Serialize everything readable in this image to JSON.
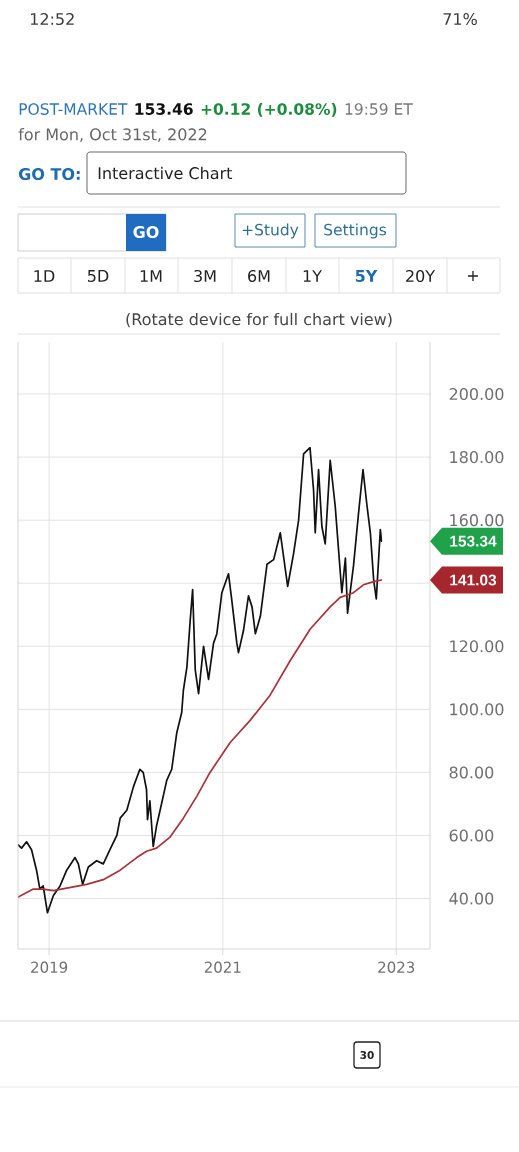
{
  "chart_data": {
    "type": "line",
    "series": [
      {
        "color": "#111111",
        "x": [
          "2018-08-24",
          "2018-09-07",
          "2018-09-28",
          "2018-10-19",
          "2018-11-09",
          "2018-11-23",
          "2018-12-07",
          "2018-12-25",
          "2019-01-19",
          "2019-02-16",
          "2019-03-16",
          "2019-04-20",
          "2019-05-04",
          "2019-05-22",
          "2019-06-15",
          "2019-07-20",
          "2019-08-17",
          "2019-09-14",
          "2019-10-13",
          "2019-10-27",
          "2019-11-24",
          "2019-12-22",
          "2020-01-18",
          "2020-02-01",
          "2020-02-15",
          "2020-02-19",
          "2020-02-29",
          "2020-03-14",
          "2020-03-28",
          "2020-04-18",
          "2020-05-10",
          "2020-05-31",
          "2020-06-21",
          "2020-07-12",
          "2020-07-19",
          "2020-08-03",
          "2020-08-17",
          "2020-08-27",
          "2020-09-07",
          "2020-09-21",
          "2020-10-12",
          "2020-11-02",
          "2020-11-23",
          "2020-12-07",
          "2020-12-28",
          "2021-01-25",
          "2021-02-08",
          "2021-03-01",
          "2021-03-08",
          "2021-03-29",
          "2021-04-19",
          "2021-05-04",
          "2021-05-18",
          "2021-06-08",
          "2021-07-06",
          "2021-08-03",
          "2021-08-31",
          "2021-10-01",
          "2021-10-26",
          "2021-11-16",
          "2021-12-07",
          "2022-01-03",
          "2022-01-18",
          "2022-01-25",
          "2022-02-08",
          "2022-02-22",
          "2022-03-08",
          "2022-03-29",
          "2022-04-19",
          "2022-05-17",
          "2022-06-01",
          "2022-06-10",
          "2022-07-05",
          "2022-07-26",
          "2022-08-14",
          "2022-08-31",
          "2022-09-14",
          "2022-09-28",
          "2022-10-09",
          "2022-10-26",
          "2022-10-31"
        ],
        "values": [
          57,
          56,
          58,
          55.5,
          49,
          43,
          44,
          35.5,
          41,
          44,
          49,
          53,
          51,
          44.5,
          50,
          52,
          51,
          55.5,
          60,
          65.5,
          68,
          75.5,
          81,
          80,
          74.5,
          65,
          71,
          56.5,
          63,
          70,
          77.5,
          81,
          92.5,
          99,
          106,
          113.5,
          128.5,
          138,
          112.5,
          105,
          120,
          109.5,
          121,
          124,
          137,
          143,
          134.5,
          121,
          118,
          125,
          136,
          132.5,
          124,
          129.5,
          146,
          147.5,
          156,
          139,
          149.5,
          160,
          181,
          183,
          169.5,
          156,
          176,
          158,
          152.5,
          179,
          164.5,
          137,
          148,
          130.5,
          145.5,
          162,
          176,
          164.5,
          156,
          141,
          135,
          157,
          153.34
        ]
      },
      {
        "color": "#A8323A",
        "x": [
          "2018-08-24",
          "2018-10-26",
          "2018-12-07",
          "2019-01-19",
          "2019-03-30",
          "2019-06-08",
          "2019-08-17",
          "2019-10-27",
          "2020-01-05",
          "2020-02-15",
          "2020-03-28",
          "2020-05-24",
          "2020-07-19",
          "2020-09-14",
          "2020-11-08",
          "2021-02-01",
          "2021-04-26",
          "2021-07-19",
          "2021-10-12",
          "2022-01-04",
          "2022-03-29",
          "2022-05-10",
          "2022-07-05",
          "2022-08-16",
          "2022-09-28",
          "2022-10-31"
        ],
        "values": [
          40.5,
          43,
          43,
          42.5,
          43.5,
          44.5,
          46,
          49,
          53,
          55,
          56,
          59.5,
          65.5,
          72.5,
          80,
          89.5,
          96.5,
          104.5,
          115.5,
          125.5,
          132.5,
          135.5,
          137,
          139.5,
          140.5,
          141.03
        ]
      }
    ],
    "xlim": [
      "2018-08-23",
      "2023-05-23"
    ],
    "xticks": [
      "2019",
      "2021",
      "2023"
    ],
    "ylim": [
      24,
      216.5
    ],
    "yticks": [
      {
        "value": 40,
        "label": "40.00"
      },
      {
        "value": 60,
        "label": "60.00"
      },
      {
        "value": 80,
        "label": "80.00"
      },
      {
        "value": 100,
        "label": "100.00"
      },
      {
        "value": 120,
        "label": "120.00"
      },
      {
        "value": 140,
        "label": null
      },
      {
        "value": 160,
        "label": "160.00"
      },
      {
        "value": 180,
        "label": "180.00"
      },
      {
        "value": 200,
        "label": "200.00"
      }
    ],
    "grid": true,
    "annotations": [
      "12:52",
      "71%",
      "POST-MARKET",
      "153.46",
      "+0.12 (+0.08%)",
      "19:59 ET",
      "for Mon, Oct 31st, 2022",
      "GO TO:",
      "Interactive Chart",
      "GO",
      "+Study",
      "Settings",
      "1D",
      "5D",
      "1M",
      "3M",
      "6M",
      "1Y",
      "5Y",
      "20Y",
      "+",
      "(Rotate device for full chart view)",
      "153.34",
      "141.03",
      "30"
    ]
  }
}
